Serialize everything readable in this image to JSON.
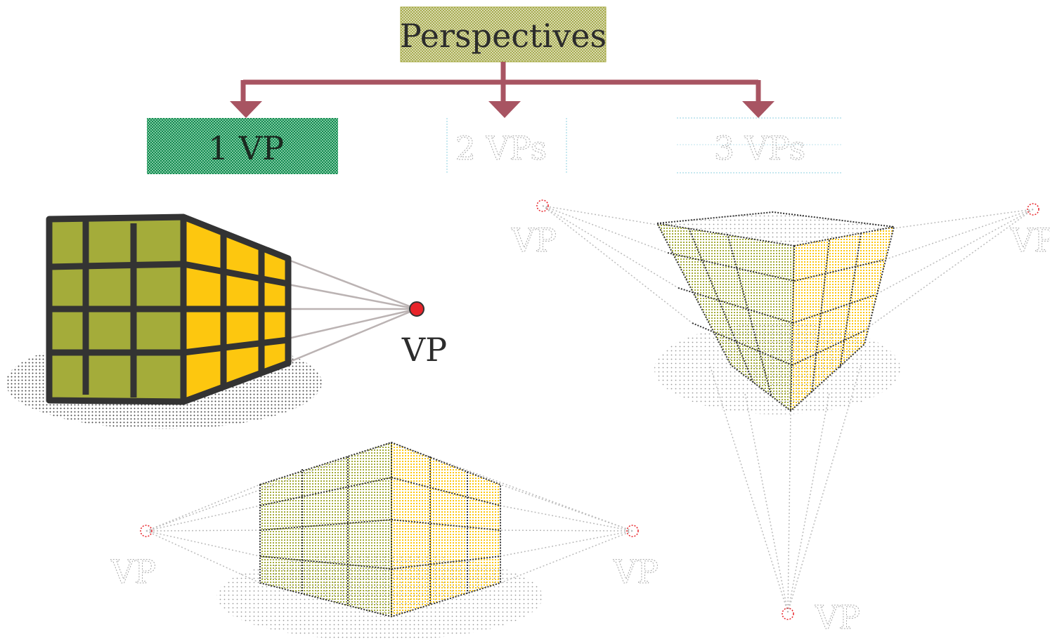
{
  "title": "Perspectives",
  "branches": [
    {
      "label": "1 VP"
    },
    {
      "label": "2 VPs"
    },
    {
      "label": "3 VPs"
    }
  ],
  "one_vp": {
    "vp_label": "VP"
  },
  "two_vp": {
    "vp_left_label": "VP",
    "vp_right_label": "VP"
  },
  "three_vp": {
    "vp_left_label": "VP",
    "vp_right_label": "VP",
    "vp_bottom_label": "VP"
  },
  "colors": {
    "title_fill": "#c5c88a",
    "title_border": "#a6aa3e",
    "connector": "#a85462",
    "branch1_fill": "#2c9c64",
    "face_green": "#a4ac3a",
    "face_yellow": "#fdc70f",
    "grid_line": "#333333",
    "vp_dot": "#e8242a",
    "guide_line": "#bbb3b3"
  }
}
